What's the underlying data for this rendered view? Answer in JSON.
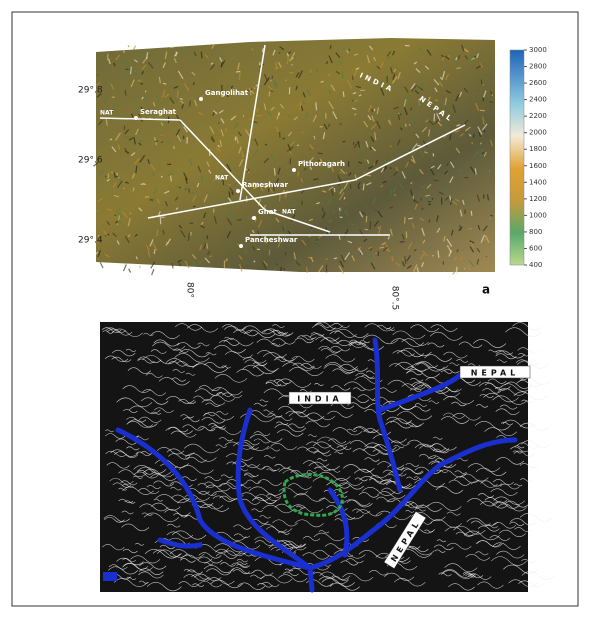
{
  "panel_a": {
    "label": "a",
    "colorbar_ticks": [
      400,
      600,
      800,
      1000,
      1200,
      1400,
      1600,
      1800,
      2000,
      2200,
      2400,
      2600,
      2800,
      3000
    ],
    "lat_labels": [
      "29°.8",
      "29°.6",
      "29°.4"
    ],
    "lon_labels": [
      "80°",
      "80°.5"
    ],
    "places": [
      "Seraghat",
      "Gangolihat",
      "Pithoragarh",
      "Rameshwar",
      "Ghat",
      "Pancheshwar"
    ],
    "fault_labels": [
      "NAT",
      "NAT",
      "NAT"
    ],
    "country_labels": [
      "INDIA",
      "NEPAL"
    ]
  },
  "panel_b": {
    "country_labels": [
      "INDIA",
      "NEPAL",
      "NEPAL"
    ]
  }
}
